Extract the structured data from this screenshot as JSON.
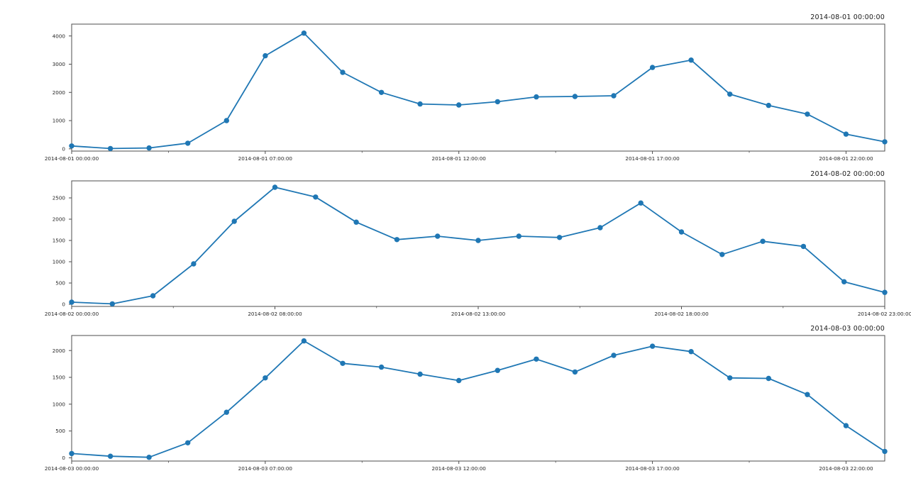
{
  "figure": {
    "background": "#ffffff",
    "line_color": "#1f77b4",
    "marker_color": "#1f77b4",
    "spine_color": "#4d4d4d",
    "tick_color": "#4d4d4d",
    "tick_label_color": "#262626",
    "title_color": "#1a1a1a"
  },
  "chart_data": [
    {
      "type": "line",
      "title": "2014-08-01 00:00:00",
      "legend": "none",
      "grid": false,
      "x_tick_positions": [
        0,
        5,
        10,
        15,
        20
      ],
      "x_tick_labels": [
        "2014-08-01 00:00:00",
        "2014-08-01 07:00:00",
        "2014-08-01 12:00:00",
        "2014-08-01 17:00:00",
        "2014-08-01 22:00:00"
      ],
      "x_minor_tick_positions": [
        2.5,
        7.5,
        12.5,
        17.5
      ],
      "y_ticks": [
        0,
        1000,
        2000,
        3000,
        4000
      ],
      "ylim": [
        -80,
        4420
      ],
      "values": [
        100,
        10,
        30,
        200,
        1000,
        3300,
        4100,
        2710,
        2000,
        1590,
        1555,
        1670,
        1840,
        1855,
        1880,
        2885,
        3145,
        1935,
        1540,
        1230,
        520,
        250
      ]
    },
    {
      "type": "line",
      "title": "2014-08-02 00:00:00",
      "legend": "none",
      "grid": false,
      "x_tick_positions": [
        0,
        5,
        10,
        15,
        20
      ],
      "x_tick_labels": [
        "2014-08-02 00:00:00",
        "2014-08-02 08:00:00",
        "2014-08-02 13:00:00",
        "2014-08-02 18:00:00",
        "2014-08-02 23:00:00"
      ],
      "x_minor_tick_positions": [
        2.5,
        7.5,
        12.5,
        17.5
      ],
      "y_ticks": [
        0,
        500,
        1000,
        1500,
        2000,
        2500
      ],
      "ylim": [
        -50,
        2900
      ],
      "values": [
        50,
        10,
        200,
        950,
        1950,
        2750,
        2520,
        1930,
        1520,
        1600,
        1500,
        1600,
        1570,
        1800,
        2380,
        1700,
        1170,
        1480,
        1360,
        530,
        280
      ]
    },
    {
      "type": "line",
      "title": "2014-08-03 00:00:00",
      "legend": "none",
      "grid": false,
      "x_tick_positions": [
        0,
        5,
        10,
        15,
        20
      ],
      "x_tick_labels": [
        "2014-08-03 00:00:00",
        "2014-08-03 07:00:00",
        "2014-08-03 12:00:00",
        "2014-08-03 17:00:00",
        "2014-08-03 22:00:00"
      ],
      "x_minor_tick_positions": [
        2.5,
        7.5,
        12.5,
        17.5
      ],
      "y_ticks": [
        0,
        500,
        1000,
        1500,
        2000
      ],
      "ylim": [
        -60,
        2280
      ],
      "values": [
        80,
        30,
        10,
        280,
        850,
        1490,
        2180,
        1760,
        1690,
        1560,
        1440,
        1630,
        1840,
        1600,
        1910,
        2080,
        1980,
        1490,
        1480,
        1180,
        600,
        120
      ]
    }
  ]
}
